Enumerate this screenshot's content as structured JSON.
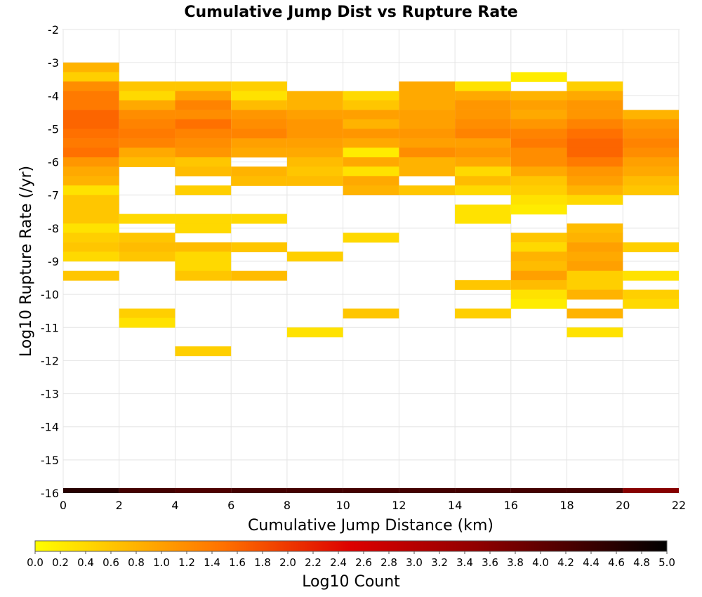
{
  "chart_data": {
    "type": "heatmap",
    "title": "Cumulative Jump Dist vs Rupture Rate",
    "xlabel": "Cumulative Jump Distance (km)",
    "ylabel": "Log10 Rupture Rate (/yr)",
    "xlim": [
      0,
      22
    ],
    "ylim": [
      -16,
      -2
    ],
    "x_ticks": [
      "0",
      "2",
      "4",
      "6",
      "8",
      "10",
      "12",
      "14",
      "16",
      "18",
      "20",
      "22"
    ],
    "y_ticks": [
      "-2",
      "-3",
      "-4",
      "-5",
      "-6",
      "-7",
      "-8",
      "-9",
      "-10",
      "-11",
      "-12",
      "-13",
      "-14",
      "-15",
      "-16"
    ],
    "x_bin_width": 2,
    "y_bin_height": 0.2857,
    "grid": true,
    "colorbar": {
      "label": "Log10 Count",
      "range": [
        0,
        5
      ],
      "ticks": [
        "0.0",
        "0.2",
        "0.4",
        "0.6",
        "0.8",
        "1.0",
        "1.2",
        "1.4",
        "1.6",
        "1.8",
        "2.0",
        "2.2",
        "2.4",
        "2.6",
        "2.8",
        "3.0",
        "3.2",
        "3.4",
        "3.6",
        "3.8",
        "4.0",
        "4.2",
        "4.4",
        "4.6",
        "4.8",
        "5.0"
      ],
      "colors": [
        "#ffff00",
        "#ff7000",
        "#dd0000",
        "#900000",
        "#000000"
      ]
    },
    "columns": [
      {
        "x0": 0,
        "cells": [
          [
            -3.0,
            0.8
          ],
          [
            -3.29,
            0.5
          ],
          [
            -3.57,
            1.2
          ],
          [
            -3.86,
            1.4
          ],
          [
            -4.14,
            1.4
          ],
          [
            -4.43,
            1.6
          ],
          [
            -4.71,
            1.6
          ],
          [
            -5.0,
            1.5
          ],
          [
            -5.29,
            1.4
          ],
          [
            -5.57,
            1.5
          ],
          [
            -5.86,
            1.1
          ],
          [
            -6.14,
            0.9
          ],
          [
            -6.43,
            0.8
          ],
          [
            -6.71,
            0.3
          ],
          [
            -7.0,
            0.6
          ],
          [
            -7.29,
            0.6
          ],
          [
            -7.57,
            0.6
          ],
          [
            -7.86,
            0.3
          ],
          [
            -8.14,
            0.5
          ],
          [
            -8.43,
            0.6
          ],
          [
            -8.71,
            0.4
          ],
          [
            -9.29,
            0.6
          ]
        ]
      },
      {
        "x0": 2,
        "cells": [
          [
            -3.57,
            0.6
          ],
          [
            -3.86,
            0.4
          ],
          [
            -4.14,
            0.9
          ],
          [
            -4.43,
            1.2
          ],
          [
            -4.71,
            1.3
          ],
          [
            -5.0,
            1.4
          ],
          [
            -5.29,
            1.3
          ],
          [
            -5.57,
            0.9
          ],
          [
            -5.86,
            0.7
          ],
          [
            -7.57,
            0.4
          ],
          [
            -8.14,
            0.6
          ],
          [
            -8.43,
            0.7
          ],
          [
            -8.71,
            0.6
          ],
          [
            -10.43,
            0.5
          ],
          [
            -10.71,
            0.3
          ]
        ]
      },
      {
        "x0": 4,
        "cells": [
          [
            -3.57,
            0.6
          ],
          [
            -3.86,
            1.0
          ],
          [
            -4.14,
            1.3
          ],
          [
            -4.43,
            1.2
          ],
          [
            -4.71,
            1.5
          ],
          [
            -5.0,
            1.3
          ],
          [
            -5.29,
            1.2
          ],
          [
            -5.57,
            1.1
          ],
          [
            -5.86,
            0.6
          ],
          [
            -6.14,
            0.7
          ],
          [
            -6.71,
            0.5
          ],
          [
            -7.57,
            0.4
          ],
          [
            -7.86,
            0.4
          ],
          [
            -8.43,
            0.7
          ],
          [
            -8.71,
            0.4
          ],
          [
            -9.0,
            0.4
          ],
          [
            -9.29,
            0.6
          ],
          [
            -11.57,
            0.5
          ]
        ]
      },
      {
        "x0": 6,
        "cells": [
          [
            -3.57,
            0.5
          ],
          [
            -3.86,
            0.3
          ],
          [
            -4.14,
            0.7
          ],
          [
            -4.43,
            1.1
          ],
          [
            -4.71,
            1.2
          ],
          [
            -5.0,
            1.3
          ],
          [
            -5.29,
            1.0
          ],
          [
            -5.57,
            0.9
          ],
          [
            -6.14,
            0.8
          ],
          [
            -6.43,
            0.7
          ],
          [
            -7.57,
            0.4
          ],
          [
            -8.43,
            0.6
          ],
          [
            -9.29,
            0.7
          ]
        ]
      },
      {
        "x0": 8,
        "cells": [
          [
            -3.86,
            0.8
          ],
          [
            -4.14,
            0.8
          ],
          [
            -4.43,
            1.0
          ],
          [
            -4.71,
            1.1
          ],
          [
            -5.0,
            1.1
          ],
          [
            -5.29,
            1.0
          ],
          [
            -5.57,
            0.9
          ],
          [
            -5.86,
            0.7
          ],
          [
            -6.14,
            0.6
          ],
          [
            -6.43,
            0.7
          ],
          [
            -8.71,
            0.5
          ],
          [
            -11.0,
            0.3
          ]
        ]
      },
      {
        "x0": 10,
        "cells": [
          [
            -3.86,
            0.4
          ],
          [
            -4.14,
            0.6
          ],
          [
            -4.43,
            1.0
          ],
          [
            -4.71,
            0.8
          ],
          [
            -5.0,
            1.1
          ],
          [
            -5.29,
            0.9
          ],
          [
            -5.57,
            0.2
          ],
          [
            -5.86,
            0.9
          ],
          [
            -6.14,
            0.3
          ],
          [
            -6.43,
            0.9
          ],
          [
            -6.71,
            0.8
          ],
          [
            -8.14,
            0.4
          ],
          [
            -10.43,
            0.6
          ]
        ]
      },
      {
        "x0": 12,
        "cells": [
          [
            -3.57,
            0.9
          ],
          [
            -3.86,
            0.9
          ],
          [
            -4.14,
            0.9
          ],
          [
            -4.43,
            1.0
          ],
          [
            -4.71,
            1.0
          ],
          [
            -5.0,
            1.1
          ],
          [
            -5.29,
            1.0
          ],
          [
            -5.57,
            1.2
          ],
          [
            -5.86,
            0.8
          ],
          [
            -6.14,
            0.8
          ],
          [
            -6.71,
            0.6
          ]
        ]
      },
      {
        "x0": 14,
        "cells": [
          [
            -3.57,
            0.3
          ],
          [
            -3.86,
            0.9
          ],
          [
            -4.14,
            1.1
          ],
          [
            -4.43,
            1.1
          ],
          [
            -4.71,
            1.2
          ],
          [
            -5.0,
            1.3
          ],
          [
            -5.29,
            1.0
          ],
          [
            -5.57,
            1.1
          ],
          [
            -5.86,
            0.9
          ],
          [
            -6.14,
            0.4
          ],
          [
            -6.43,
            0.7
          ],
          [
            -6.71,
            0.4
          ],
          [
            -7.29,
            0.3
          ],
          [
            -7.57,
            0.3
          ],
          [
            -9.57,
            0.6
          ],
          [
            -10.43,
            0.5
          ]
        ]
      },
      {
        "x0": 16,
        "cells": [
          [
            -3.29,
            0.2
          ],
          [
            -3.86,
            0.8
          ],
          [
            -4.14,
            1.0
          ],
          [
            -4.43,
            0.9
          ],
          [
            -4.71,
            1.1
          ],
          [
            -5.0,
            1.3
          ],
          [
            -5.29,
            1.4
          ],
          [
            -5.57,
            1.2
          ],
          [
            -5.86,
            1.2
          ],
          [
            -6.14,
            0.9
          ],
          [
            -6.43,
            0.6
          ],
          [
            -6.71,
            0.5
          ],
          [
            -7.0,
            0.3
          ],
          [
            -7.29,
            0.2
          ],
          [
            -8.14,
            0.6
          ],
          [
            -8.43,
            0.4
          ],
          [
            -8.71,
            0.8
          ],
          [
            -9.0,
            0.7
          ],
          [
            -9.29,
            1.0
          ],
          [
            -9.57,
            0.7
          ],
          [
            -9.86,
            0.3
          ],
          [
            -10.14,
            0.2
          ]
        ]
      },
      {
        "x0": 18,
        "cells": [
          [
            -3.57,
            0.5
          ],
          [
            -3.86,
            0.9
          ],
          [
            -4.14,
            1.1
          ],
          [
            -4.43,
            1.1
          ],
          [
            -4.71,
            1.3
          ],
          [
            -5.0,
            1.5
          ],
          [
            -5.29,
            1.6
          ],
          [
            -5.57,
            1.6
          ],
          [
            -5.86,
            1.4
          ],
          [
            -6.14,
            1.1
          ],
          [
            -6.43,
            1.0
          ],
          [
            -6.71,
            0.8
          ],
          [
            -7.0,
            0.4
          ],
          [
            -7.86,
            0.7
          ],
          [
            -8.14,
            0.8
          ],
          [
            -8.43,
            1.0
          ],
          [
            -8.71,
            0.9
          ],
          [
            -9.0,
            1.0
          ],
          [
            -9.29,
            0.5
          ],
          [
            -9.57,
            0.5
          ],
          [
            -9.86,
            0.8
          ],
          [
            -10.43,
            0.8
          ],
          [
            -11.0,
            0.3
          ]
        ]
      },
      {
        "x0": 20,
        "cells": [
          [
            -4.43,
            0.8
          ],
          [
            -4.71,
            1.1
          ],
          [
            -5.0,
            1.2
          ],
          [
            -5.29,
            1.3
          ],
          [
            -5.57,
            1.2
          ],
          [
            -5.86,
            1.0
          ],
          [
            -6.14,
            0.9
          ],
          [
            -6.43,
            0.7
          ],
          [
            -6.71,
            0.6
          ],
          [
            -8.43,
            0.5
          ],
          [
            -9.29,
            0.3
          ],
          [
            -9.86,
            0.5
          ],
          [
            -10.14,
            0.4
          ]
        ]
      }
    ],
    "bottom_row": {
      "y0": -16,
      "height": 0.15,
      "values": [
        4.6,
        4.3,
        4.2,
        4.3,
        4.3,
        4.3,
        4.3,
        4.3,
        4.3,
        4.3,
        3.6
      ]
    }
  }
}
